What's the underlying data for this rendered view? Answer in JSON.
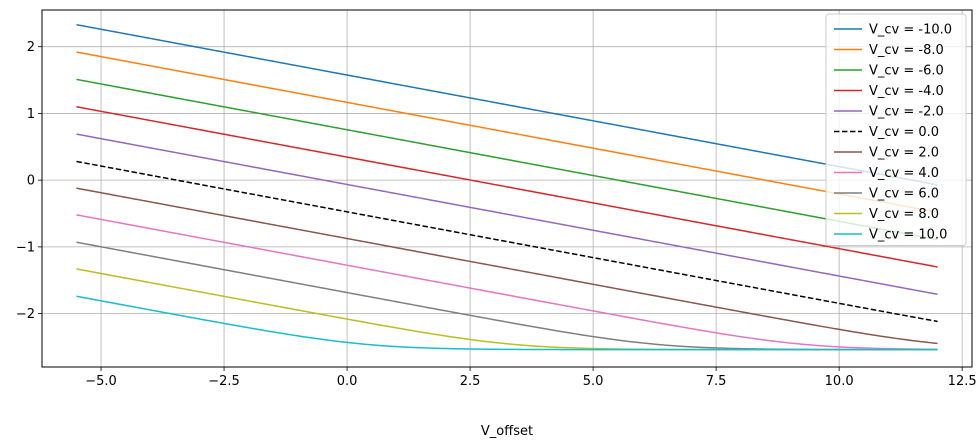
{
  "chart_data": {
    "type": "line",
    "title": "",
    "xlabel": "V_offset",
    "ylabel": "",
    "xlim": [
      -6.2,
      12.7
    ],
    "ylim": [
      -2.8,
      2.55
    ],
    "grid": true,
    "legend_position": "top-right",
    "xticks": [
      -5.0,
      -2.5,
      0.0,
      2.5,
      5.0,
      7.5,
      10.0,
      12.5
    ],
    "xtick_labels": [
      "−5.0",
      "−2.5",
      "0.0",
      "2.5",
      "5.0",
      "7.5",
      "10.0",
      "12.5"
    ],
    "yticks": [
      -2,
      -1,
      0,
      1,
      2
    ],
    "ytick_labels": [
      "−2",
      "−1",
      "0",
      "1",
      "2"
    ],
    "x_range": [
      -5.5,
      12.0
    ],
    "floor": -2.54,
    "series": [
      {
        "name": "V_cv = -10.0",
        "color": "#1f77b4",
        "dash": "solid",
        "start": 2.33,
        "slope": -0.1372
      },
      {
        "name": "V_cv = -8.0",
        "color": "#ff7f0e",
        "dash": "solid",
        "start": 1.92,
        "slope": -0.1372
      },
      {
        "name": "V_cv = -6.0",
        "color": "#2ca02c",
        "dash": "solid",
        "start": 1.51,
        "slope": -0.1372
      },
      {
        "name": "V_cv = -4.0",
        "color": "#d62728",
        "dash": "solid",
        "start": 1.1,
        "slope": -0.1372
      },
      {
        "name": "V_cv = -2.0",
        "color": "#9467bd",
        "dash": "solid",
        "start": 0.69,
        "slope": -0.1372
      },
      {
        "name": "V_cv = 0.0",
        "color": "#000000",
        "dash": "dashed",
        "start": 0.28,
        "slope": -0.1372
      },
      {
        "name": "V_cv = 2.0",
        "color": "#8c564b",
        "dash": "solid",
        "start": -0.12,
        "slope": -0.1372
      },
      {
        "name": "V_cv = 4.0",
        "color": "#e377c2",
        "dash": "solid",
        "start": -0.52,
        "slope": -0.1372
      },
      {
        "name": "V_cv = 6.0",
        "color": "#7f7f7f",
        "dash": "solid",
        "start": -0.93,
        "slope": -0.1372
      },
      {
        "name": "V_cv = 8.0",
        "color": "#bcbd22",
        "dash": "solid",
        "start": -1.33,
        "slope": -0.1372
      },
      {
        "name": "V_cv = 10.0",
        "color": "#17becf",
        "dash": "solid",
        "start": -1.74,
        "slope": -0.1372
      }
    ]
  }
}
